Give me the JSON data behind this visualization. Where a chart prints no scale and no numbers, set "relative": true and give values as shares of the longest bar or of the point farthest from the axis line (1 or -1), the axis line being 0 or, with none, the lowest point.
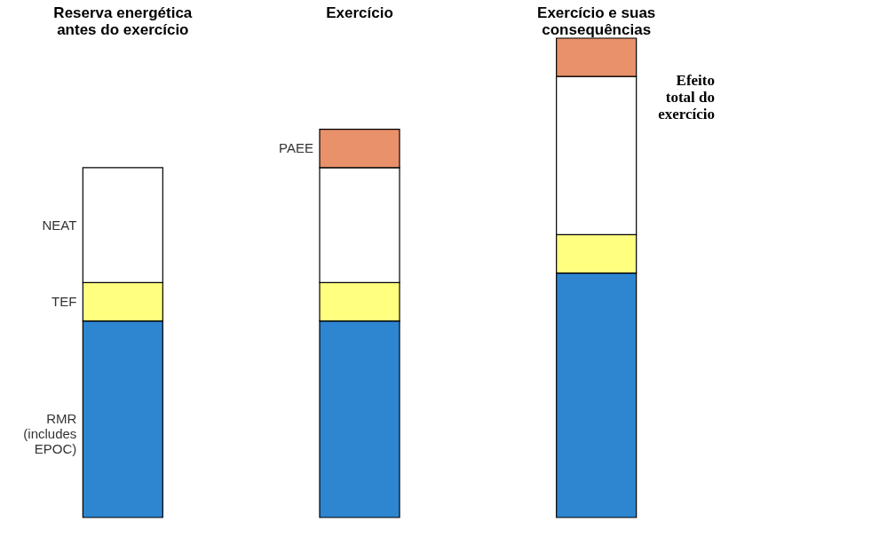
{
  "chart_data": {
    "type": "bar",
    "stacked": true,
    "relative": true,
    "categories": [
      "Reserva energética\nantes do exercício",
      "Exercício",
      "Exercício e suas\nconsequências"
    ],
    "series": [
      {
        "name": "RMR\n(includes\nEPOC)",
        "color": "#2f86d0",
        "values": [
          0.41,
          0.41,
          0.51
        ]
      },
      {
        "name": "TEF",
        "color": "#ffff80",
        "values": [
          0.08,
          0.08,
          0.08
        ]
      },
      {
        "name": "NEAT",
        "color": "#ffffff",
        "values": [
          0.24,
          0.24,
          0.33
        ]
      },
      {
        "name": "PAEE",
        "color": "#e8916a",
        "values": [
          null,
          0.08,
          0.08
        ]
      }
    ],
    "annotations": [
      "Efeito\ntotal do\nexercício"
    ]
  }
}
